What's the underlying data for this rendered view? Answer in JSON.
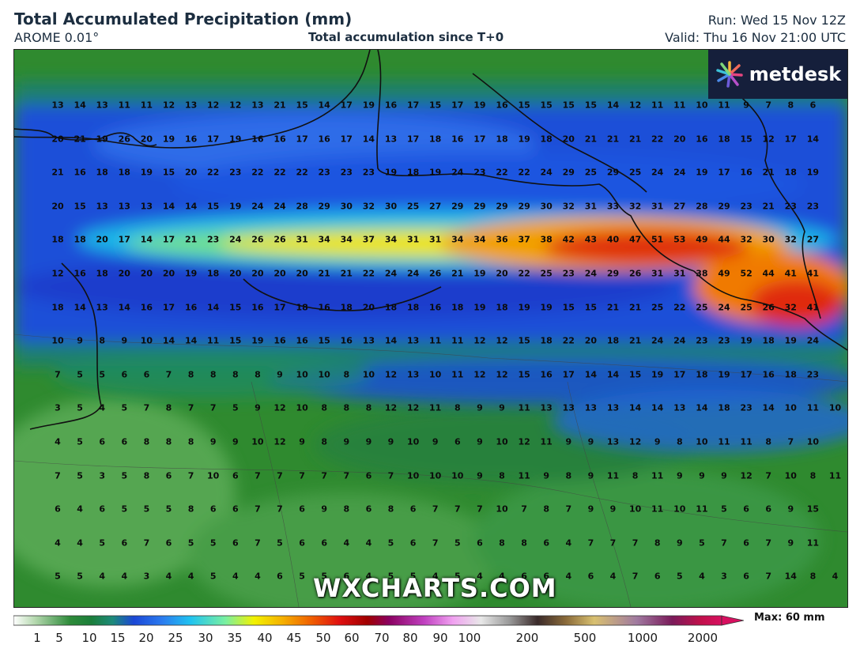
{
  "header": {
    "title": "Total Accumulated Precipitation (mm)",
    "model": "AROME 0.01°",
    "subtitle": "Total accumulation since T+0",
    "run": "Run: Wed 15 Nov 12Z",
    "valid": "Valid: Thu 16 Nov 21:00 UTC"
  },
  "logo": {
    "text": "metdesk",
    "icon": "metdesk-star-icon"
  },
  "watermark": "WXCHARTS.COM",
  "legend": {
    "ticks": [
      "1",
      "5",
      "10",
      "15",
      "20",
      "25",
      "30",
      "35",
      "40",
      "45",
      "50",
      "60",
      "70",
      "80",
      "90",
      "100",
      "200",
      "500",
      "1000",
      "2000"
    ],
    "max_label": "Max: 60 mm"
  },
  "grid_values": [
    [
      13,
      14,
      13,
      11,
      11,
      12,
      13,
      12,
      12,
      13,
      21,
      15,
      14,
      17,
      19,
      16,
      17,
      15,
      17,
      19,
      16,
      15,
      15,
      15,
      15,
      14,
      12,
      11,
      11,
      10,
      11,
      9,
      7,
      8,
      6
    ],
    [
      20,
      21,
      19,
      26,
      20,
      19,
      16,
      17,
      19,
      16,
      16,
      17,
      16,
      17,
      14,
      13,
      17,
      18,
      16,
      17,
      18,
      19,
      18,
      20,
      21,
      21,
      21,
      22,
      20,
      16,
      18,
      15,
      12,
      17,
      14
    ],
    [
      21,
      16,
      18,
      18,
      19,
      15,
      20,
      22,
      23,
      22,
      22,
      22,
      23,
      23,
      23,
      19,
      18,
      19,
      24,
      23,
      22,
      22,
      24,
      29,
      25,
      29,
      25,
      24,
      24,
      19,
      17,
      16,
      21,
      18,
      19
    ],
    [
      20,
      15,
      13,
      13,
      13,
      14,
      14,
      15,
      19,
      24,
      24,
      28,
      29,
      30,
      32,
      30,
      25,
      27,
      29,
      29,
      29,
      29,
      30,
      32,
      31,
      33,
      32,
      31,
      27,
      28,
      29,
      23,
      21,
      23,
      23
    ],
    [
      18,
      18,
      20,
      17,
      14,
      17,
      21,
      23,
      24,
      26,
      26,
      31,
      34,
      34,
      37,
      34,
      31,
      31,
      34,
      34,
      36,
      37,
      38,
      42,
      43,
      40,
      47,
      51,
      53,
      49,
      44,
      32,
      30,
      32,
      27
    ],
    [
      12,
      16,
      18,
      20,
      20,
      20,
      19,
      18,
      20,
      20,
      20,
      20,
      21,
      21,
      22,
      24,
      24,
      26,
      21,
      19,
      20,
      22,
      25,
      23,
      24,
      29,
      26,
      31,
      31,
      38,
      49,
      52,
      44,
      41,
      41
    ],
    [
      18,
      14,
      13,
      14,
      16,
      17,
      16,
      14,
      15,
      16,
      17,
      18,
      16,
      18,
      20,
      18,
      18,
      16,
      18,
      19,
      18,
      19,
      19,
      15,
      15,
      21,
      21,
      25,
      22,
      25,
      24,
      25,
      26,
      32,
      41
    ],
    [
      10,
      9,
      8,
      9,
      10,
      14,
      14,
      11,
      15,
      19,
      16,
      16,
      15,
      16,
      13,
      14,
      13,
      11,
      11,
      12,
      12,
      15,
      18,
      22,
      20,
      18,
      21,
      24,
      24,
      23,
      23,
      19,
      18,
      19,
      24
    ],
    [
      7,
      5,
      5,
      6,
      6,
      7,
      8,
      8,
      8,
      8,
      9,
      10,
      10,
      8,
      10,
      12,
      13,
      10,
      11,
      12,
      12,
      15,
      16,
      17,
      14,
      14,
      15,
      19,
      17,
      18,
      19,
      17,
      16,
      18,
      23
    ],
    [
      3,
      5,
      4,
      5,
      7,
      8,
      7,
      7,
      5,
      9,
      12,
      10,
      8,
      8,
      8,
      12,
      12,
      11,
      8,
      9,
      9,
      11,
      13,
      13,
      13,
      13,
      14,
      14,
      13,
      14,
      18,
      23,
      14,
      10,
      11,
      10
    ],
    [
      4,
      5,
      6,
      6,
      8,
      8,
      8,
      9,
      9,
      10,
      12,
      9,
      8,
      9,
      9,
      9,
      10,
      9,
      6,
      9,
      10,
      12,
      11,
      9,
      9,
      13,
      12,
      9,
      8,
      10,
      11,
      11,
      8,
      7,
      10
    ],
    [
      7,
      5,
      3,
      5,
      8,
      6,
      7,
      10,
      6,
      7,
      7,
      7,
      7,
      7,
      6,
      7,
      10,
      10,
      10,
      9,
      8,
      11,
      9,
      8,
      9,
      11,
      8,
      11,
      9,
      9,
      9,
      12,
      7,
      10,
      8,
      11
    ],
    [
      6,
      4,
      6,
      5,
      5,
      5,
      8,
      6,
      6,
      7,
      7,
      6,
      9,
      8,
      6,
      8,
      6,
      7,
      7,
      7,
      10,
      7,
      8,
      7,
      9,
      9,
      10,
      11,
      10,
      11,
      5,
      6,
      6,
      9,
      15
    ],
    [
      4,
      4,
      5,
      6,
      7,
      6,
      5,
      5,
      6,
      7,
      5,
      6,
      6,
      4,
      4,
      5,
      6,
      7,
      5,
      6,
      8,
      8,
      6,
      4,
      7,
      7,
      7,
      8,
      9,
      5,
      7,
      6,
      7,
      9,
      11
    ],
    [
      5,
      5,
      4,
      4,
      3,
      4,
      4,
      5,
      4,
      4,
      6,
      5,
      5,
      6,
      4,
      5,
      5,
      4,
      5,
      4,
      4,
      6,
      6,
      4,
      6,
      4,
      7,
      6,
      5,
      4,
      3,
      6,
      7,
      14,
      8,
      4
    ]
  ],
  "colors": {
    "band_green_dark": "#2d8a34",
    "band_blue": "#1e64e6",
    "band_yellow": "#f2e600",
    "band_red": "#e02010",
    "logo_bg": "#151f3b"
  }
}
